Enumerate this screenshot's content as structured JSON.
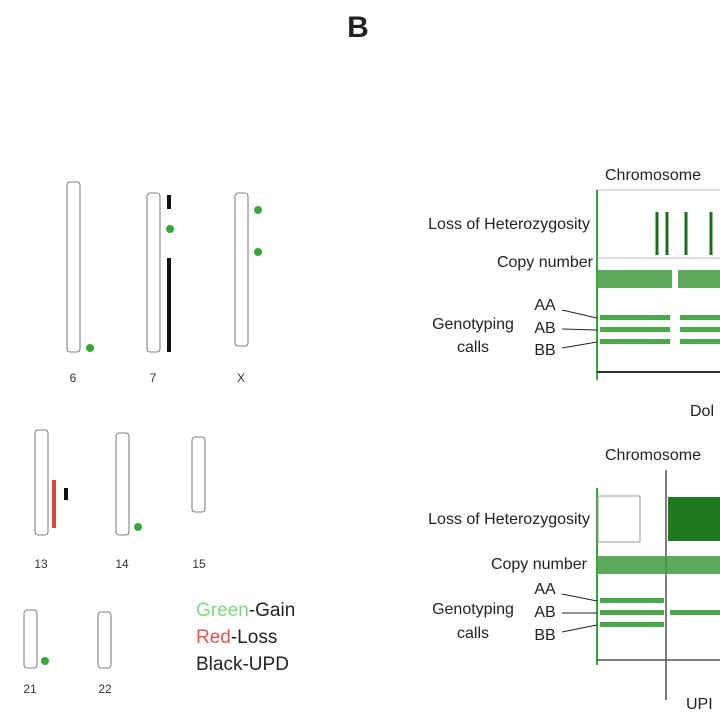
{
  "panel_label": "B",
  "karyogram": {
    "chromosomes": [
      "6",
      "7",
      "X",
      "13",
      "14",
      "15",
      "21",
      "22"
    ]
  },
  "legend": [
    {
      "color_word": "Green",
      "rest": "-Gain"
    },
    {
      "color_word": "Red",
      "rest": "-Loss"
    },
    {
      "color_word": "Black",
      "rest": "-UPD"
    }
  ],
  "tracks": [
    {
      "title": "Chromosome",
      "loh": "Loss of Heterozygosity",
      "copy_number": "Copy number",
      "genotyping": [
        "Genotyping",
        "calls"
      ],
      "calls": [
        "AA",
        "AB",
        "BB"
      ],
      "caption": "Dol"
    },
    {
      "title": "Chromosome",
      "loh": "Loss of Heterozygosity",
      "copy_number": "Copy number",
      "genotyping": [
        "Genotyping",
        "calls"
      ],
      "calls": [
        "AA",
        "AB",
        "BB"
      ],
      "caption": "UPI"
    }
  ]
}
